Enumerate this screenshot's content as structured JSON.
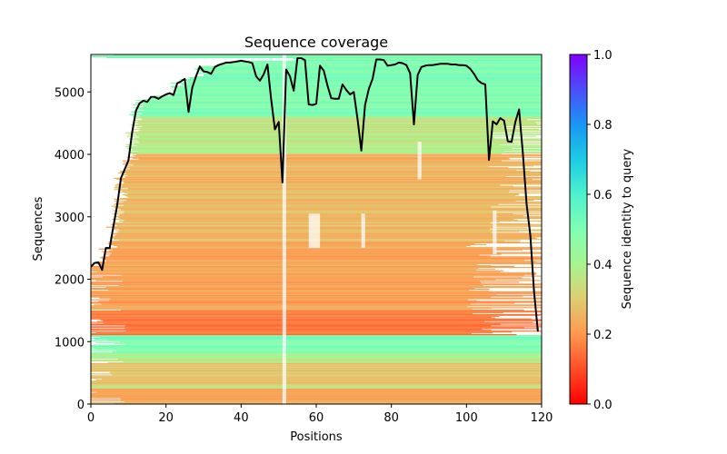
{
  "chart_data": {
    "type": "heatmap",
    "title": "Sequence coverage",
    "xlabel": "Positions",
    "ylabel": "Sequences",
    "xlim": [
      0,
      120
    ],
    "ylim": [
      0,
      5600
    ],
    "xticks": [
      "0",
      "20",
      "40",
      "60",
      "80",
      "100",
      "120"
    ],
    "xtick_values": [
      0,
      20,
      40,
      60,
      80,
      100,
      120
    ],
    "yticks": [
      "0",
      "1000",
      "2000",
      "3000",
      "4000",
      "5000"
    ],
    "ytick_values": [
      0,
      1000,
      2000,
      3000,
      4000,
      5000
    ],
    "colorbar": {
      "label": "Sequence identity to query",
      "colormap": "rainbow_r",
      "range": [
        0,
        1
      ],
      "ticks": [
        "0.0",
        "0.2",
        "0.4",
        "0.6",
        "0.8",
        "1.0"
      ],
      "tick_values": [
        0,
        0.2,
        0.4,
        0.6,
        0.8,
        1.0
      ]
    },
    "identity_bands": [
      {
        "from": 0,
        "to": 250,
        "identity": 0.22
      },
      {
        "from": 250,
        "to": 320,
        "identity": 0.35
      },
      {
        "from": 320,
        "to": 650,
        "identity": 0.28
      },
      {
        "from": 650,
        "to": 800,
        "identity": 0.38
      },
      {
        "from": 800,
        "to": 1100,
        "identity": 0.5
      },
      {
        "from": 1100,
        "to": 1500,
        "identity": 0.15
      },
      {
        "from": 1500,
        "to": 2600,
        "identity": 0.22
      },
      {
        "from": 2600,
        "to": 3400,
        "identity": 0.27
      },
      {
        "from": 3400,
        "to": 4000,
        "identity": 0.25
      },
      {
        "from": 4000,
        "to": 4600,
        "identity": 0.37
      },
      {
        "from": 4600,
        "to": 5600,
        "identity": 0.5
      }
    ],
    "coverage_series": {
      "name": "coverage",
      "color": "#000000",
      "x": [
        0,
        1,
        2,
        3,
        4,
        5,
        6,
        7,
        8,
        9,
        10,
        11,
        12,
        13,
        14,
        15,
        16,
        17,
        18,
        19,
        20,
        21,
        22,
        23,
        24,
        25,
        26,
        27,
        28,
        29,
        30,
        31,
        32,
        33,
        34,
        35,
        36,
        37,
        38,
        39,
        40,
        41,
        42,
        43,
        44,
        45,
        46,
        47,
        48,
        49,
        50,
        51,
        52,
        53,
        54,
        55,
        56,
        57,
        58,
        59,
        60,
        61,
        62,
        63,
        64,
        65,
        66,
        67,
        68,
        69,
        70,
        71,
        72,
        73,
        74,
        75,
        76,
        77,
        78,
        79,
        80,
        81,
        82,
        83,
        84,
        85,
        86,
        87,
        88,
        89,
        90,
        91,
        92,
        93,
        94,
        95,
        96,
        97,
        98,
        99,
        100,
        101,
        102,
        103,
        104,
        105,
        106,
        107,
        108,
        109,
        110,
        111,
        112,
        113,
        114,
        115,
        116,
        117,
        118,
        119
      ],
      "values": [
        2200,
        2260,
        2270,
        2150,
        2500,
        2500,
        2850,
        3180,
        3620,
        3760,
        3900,
        4360,
        4700,
        4820,
        4860,
        4840,
        4920,
        4920,
        4890,
        4930,
        4960,
        4980,
        4950,
        5140,
        5170,
        5210,
        4680,
        5070,
        5250,
        5410,
        5330,
        5320,
        5290,
        5400,
        5430,
        5450,
        5470,
        5470,
        5480,
        5490,
        5500,
        5490,
        5480,
        5460,
        5250,
        5180,
        5280,
        5440,
        4880,
        4400,
        4520,
        3550,
        5360,
        5250,
        5020,
        5540,
        5540,
        5510,
        4800,
        4790,
        4810,
        5420,
        5340,
        5100,
        4900,
        4890,
        4890,
        5120,
        5030,
        4960,
        5000,
        4560,
        4060,
        4790,
        5050,
        5210,
        5520,
        5520,
        5510,
        5420,
        5430,
        5440,
        5470,
        5460,
        5430,
        5300,
        4480,
        5270,
        5400,
        5420,
        5430,
        5430,
        5440,
        5450,
        5450,
        5450,
        5440,
        5440,
        5430,
        5430,
        5420,
        5370,
        5290,
        5190,
        5140,
        5120,
        3910,
        4530,
        4480,
        4580,
        4540,
        4210,
        4200,
        4520,
        4720,
        4030,
        3200,
        2700,
        1800,
        1160
      ]
    }
  }
}
